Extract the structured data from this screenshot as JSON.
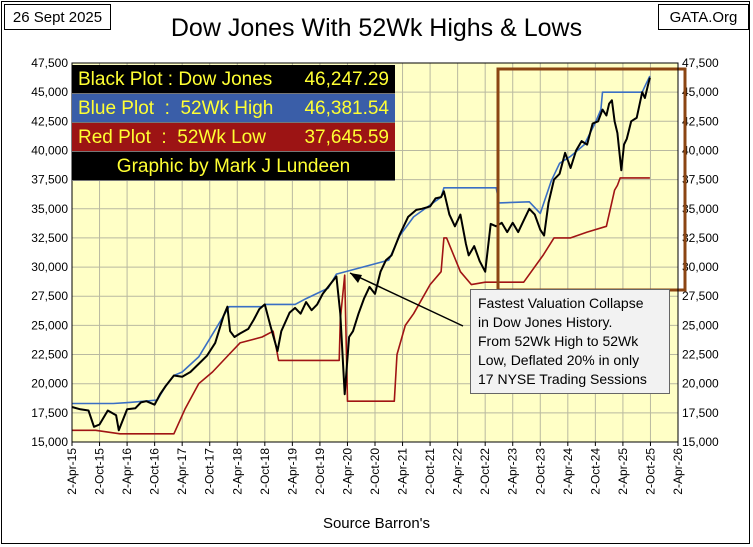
{
  "header": {
    "date": "26 Sept 2025",
    "source_site": "GATA.Org",
    "title": "Dow Jones With 52Wk Highs & Lows",
    "xlabel": "Source Barron's"
  },
  "legend": {
    "black": {
      "label": "Black Plot : Dow Jones",
      "value": "46,247.29"
    },
    "blue": {
      "label": "Blue Plot  :  52Wk High",
      "value": "46,381.54"
    },
    "red": {
      "label": "Red Plot  :  52Wk Low",
      "value": "37,645.59"
    },
    "credit": "Graphic by Mark J Lundeen"
  },
  "annotation": {
    "lines": [
      "Fastest Valuation Collapse",
      "in Dow Jones History.",
      "From 52Wk High to 52Wk",
      "Low, Deflated 20% in only",
      "17 NYSE Trading Sessions"
    ]
  },
  "colors": {
    "plot_bg": "#ffffc6",
    "dow": "#000000",
    "high": "#3a6fc4",
    "low": "#a01414",
    "highlight_box": "#8b4513"
  },
  "chart_data": {
    "type": "line",
    "title": "Dow Jones With 52Wk Highs & Lows",
    "xlabel": "Source Barron's",
    "ylabel": "",
    "x_tick_labels": [
      "2-Apr-15",
      "2-Oct-15",
      "2-Apr-16",
      "2-Oct-16",
      "2-Apr-17",
      "2-Oct-17",
      "2-Apr-18",
      "2-Oct-18",
      "2-Apr-19",
      "2-Oct-19",
      "2-Apr-20",
      "2-Oct-20",
      "2-Apr-21",
      "2-Oct-21",
      "2-Apr-22",
      "2-Oct-22",
      "2-Apr-23",
      "2-Oct-23",
      "2-Apr-24",
      "2-Oct-24",
      "2-Apr-25",
      "2-Oct-25",
      "2-Apr-26"
    ],
    "y_tick_labels": [
      "15,000",
      "17,500",
      "20,000",
      "22,500",
      "25,000",
      "27,500",
      "30,000",
      "32,500",
      "35,000",
      "37,500",
      "40,000",
      "42,500",
      "45,000",
      "47,500"
    ],
    "ylim": [
      15000,
      47500
    ],
    "grid": true,
    "legend_position": "top-left",
    "series": [
      {
        "name": "Dow Jones",
        "x": [
          2015.25,
          2015.4,
          2015.55,
          2015.65,
          2015.75,
          2015.9,
          2016.05,
          2016.1,
          2016.25,
          2016.4,
          2016.5,
          2016.6,
          2016.75,
          2016.85,
          2016.95,
          2017.1,
          2017.25,
          2017.4,
          2017.55,
          2017.7,
          2017.85,
          2018.0,
          2018.07,
          2018.12,
          2018.2,
          2018.3,
          2018.45,
          2018.55,
          2018.65,
          2018.75,
          2018.85,
          2018.98,
          2019.05,
          2019.2,
          2019.3,
          2019.4,
          2019.5,
          2019.6,
          2019.7,
          2019.8,
          2019.95,
          2020.05,
          2020.12,
          2020.2,
          2020.28,
          2020.35,
          2020.45,
          2020.55,
          2020.65,
          2020.75,
          2020.85,
          2020.95,
          2021.05,
          2021.2,
          2021.35,
          2021.5,
          2021.6,
          2021.75,
          2021.85,
          2021.95,
          2022.0,
          2022.1,
          2022.2,
          2022.3,
          2022.4,
          2022.45,
          2022.55,
          2022.65,
          2022.75,
          2022.85,
          2022.95,
          2023.05,
          2023.15,
          2023.25,
          2023.35,
          2023.45,
          2023.55,
          2023.65,
          2023.75,
          2023.82,
          2023.9,
          2024.0,
          2024.1,
          2024.2,
          2024.3,
          2024.4,
          2024.5,
          2024.6,
          2024.7,
          2024.8,
          2024.88,
          2024.95,
          2025.0,
          2025.05,
          2025.1,
          2025.15,
          2025.22,
          2025.27,
          2025.32,
          2025.4,
          2025.5,
          2025.6,
          2025.65,
          2025.7,
          2025.74
        ],
        "y": [
          18000,
          17800,
          17700,
          16300,
          16500,
          17700,
          17300,
          16000,
          17800,
          17900,
          18400,
          18500,
          18200,
          19100,
          19800,
          20700,
          20600,
          21000,
          21700,
          22400,
          23500,
          25800,
          26600,
          24500,
          24000,
          24300,
          24700,
          25500,
          26400,
          26800,
          25000,
          22800,
          24500,
          26100,
          26500,
          26000,
          27000,
          26300,
          26800,
          27700,
          28600,
          29200,
          26000,
          19100,
          24000,
          24500,
          26000,
          27300,
          28300,
          27700,
          29600,
          30600,
          31000,
          32800,
          34300,
          34900,
          35000,
          35200,
          35900,
          36000,
          36500,
          34500,
          33500,
          34500,
          32000,
          31000,
          31800,
          30500,
          29600,
          33700,
          33500,
          33800,
          33000,
          33800,
          33000,
          34000,
          35000,
          34500,
          33200,
          32700,
          35500,
          37500,
          38000,
          39800,
          38500,
          40000,
          40800,
          40500,
          42300,
          42500,
          43500,
          43000,
          44000,
          44300,
          42500,
          41500,
          38300,
          40500,
          41000,
          42500,
          42800,
          45000,
          44500,
          45500,
          46247
        ]
      },
      {
        "name": "52Wk High",
        "x": [
          2015.25,
          2016.0,
          2016.3,
          2016.8,
          2016.8,
          2016.95,
          2017.1,
          2017.25,
          2017.55,
          2018.0,
          2018.1,
          2018.7,
          2018.75,
          2019.3,
          2019.5,
          2019.9,
          2020.05,
          2021.0,
          2021.2,
          2021.45,
          2021.95,
          2022.0,
          2022.95,
          2023.0,
          2023.55,
          2023.75,
          2023.95,
          2024.1,
          2024.3,
          2024.55,
          2024.75,
          2024.85,
          2024.88,
          2025.6,
          2025.65,
          2025.74
        ],
        "y": [
          18300,
          18300,
          18400,
          18600,
          18600,
          19800,
          20700,
          21000,
          22300,
          25800,
          26600,
          26600,
          26800,
          26800,
          27300,
          28200,
          29400,
          30600,
          32700,
          34300,
          36000,
          36800,
          36800,
          35500,
          35600,
          34600,
          37400,
          38900,
          39500,
          40500,
          42400,
          43500,
          45000,
          45000,
          45500,
          46381
        ]
      },
      {
        "name": "52Wk Low",
        "x": [
          2015.25,
          2015.68,
          2016.12,
          2017.1,
          2017.3,
          2017.55,
          2017.8,
          2018.1,
          2018.3,
          2018.7,
          2018.9,
          2019.0,
          2019.35,
          2020.1,
          2020.12,
          2020.2,
          2020.25,
          2021.1,
          2021.15,
          2021.3,
          2021.45,
          2021.75,
          2021.95,
          2022.0,
          2022.05,
          2022.3,
          2022.5,
          2022.75,
          2023.45,
          2023.8,
          2024.0,
          2024.3,
          2024.6,
          2024.95,
          2025.1,
          2025.15,
          2025.2,
          2025.74
        ],
        "y": [
          16000,
          16000,
          15700,
          15700,
          17800,
          20000,
          21000,
          22500,
          23500,
          24000,
          24500,
          22000,
          22000,
          22000,
          25500,
          29300,
          18500,
          18500,
          22500,
          25000,
          26000,
          28500,
          29600,
          32500,
          32500,
          29600,
          28500,
          28700,
          28700,
          31000,
          32500,
          32500,
          33000,
          33500,
          36600,
          37000,
          37645,
          37645
        ]
      }
    ]
  }
}
